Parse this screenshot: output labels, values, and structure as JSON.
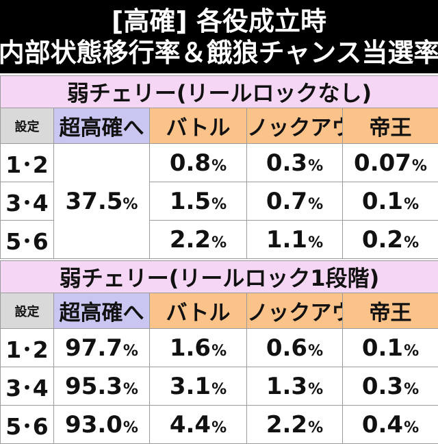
{
  "title": {
    "line1": "[高確] 各役成立時",
    "line2": "内部状態移行率＆餓狼チャンス当選率"
  },
  "columns": {
    "setting": "設定",
    "super": "超高確へ",
    "battle": "バトル",
    "knockout": "ノックアウト",
    "emperor": "帝王"
  },
  "table1": {
    "section": "弱チェリー(リールロックなし)",
    "super_merged": "37.5",
    "rows": [
      {
        "setting": "1･2",
        "battle": "0.8",
        "knockout": "0.3",
        "emperor": "0.07"
      },
      {
        "setting": "3･4",
        "battle": "1.5",
        "knockout": "0.7",
        "emperor": "0.1"
      },
      {
        "setting": "5･6",
        "battle": "2.2",
        "knockout": "1.1",
        "emperor": "0.2"
      }
    ]
  },
  "table2": {
    "section": "弱チェリー(リールロック1段階)",
    "rows": [
      {
        "setting": "1･2",
        "super": "97.7",
        "battle": "1.6",
        "knockout": "0.6",
        "emperor": "0.1"
      },
      {
        "setting": "3･4",
        "super": "95.3",
        "battle": "3.1",
        "knockout": "1.3",
        "emperor": "0.3"
      },
      {
        "setting": "5･6",
        "super": "93.0",
        "battle": "4.4",
        "knockout": "2.2",
        "emperor": "0.4"
      }
    ]
  },
  "unit": "%",
  "colors": {
    "header_bg": "#000000",
    "section_bg": "#f6d6f5",
    "super_bg": "#c9c6f2",
    "column_bg": "#fbc289",
    "setting_bg": "#d9d9d9"
  }
}
